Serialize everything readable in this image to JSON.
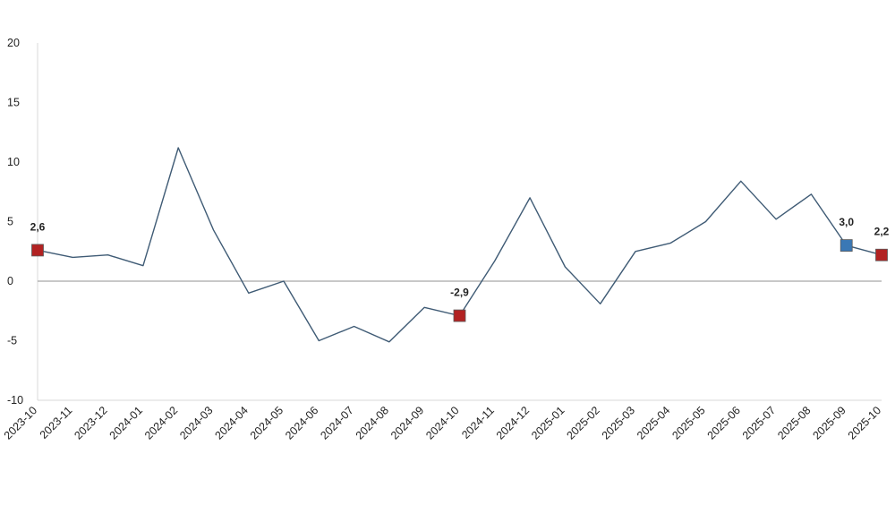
{
  "chart_data": {
    "type": "line",
    "title": "",
    "xlabel": "",
    "ylabel": "",
    "ylim": [
      -10,
      20
    ],
    "yticks": [
      -10,
      -5,
      0,
      5,
      10,
      15,
      20
    ],
    "grid": false,
    "zero_line": true,
    "categories": [
      "2023-10",
      "2023-11",
      "2023-12",
      "2024-01",
      "2024-02",
      "2024-03",
      "2024-04",
      "2024-05",
      "2024-06",
      "2024-07",
      "2024-08",
      "2024-09",
      "2024-10",
      "2024-11",
      "2024-12",
      "2025-01",
      "2025-02",
      "2025-03",
      "2025-04",
      "2025-05",
      "2025-06",
      "2025-07",
      "2025-08",
      "2025-09",
      "2025-10"
    ],
    "series": [
      {
        "values": [
          2.6,
          2.0,
          2.2,
          1.3,
          11.2,
          4.3,
          -1.0,
          0.0,
          -5.0,
          -3.8,
          -5.1,
          -2.2,
          -2.9,
          1.7,
          7.0,
          1.2,
          -1.9,
          2.5,
          3.2,
          5.0,
          8.4,
          5.2,
          7.3,
          3.0,
          2.2
        ],
        "color": "#3f5b75"
      }
    ],
    "highlights": [
      {
        "index": 0,
        "label": "2,6",
        "color": "#b22222"
      },
      {
        "index": 12,
        "label": "-2,9",
        "color": "#b22222"
      },
      {
        "index": 23,
        "label": "3,0",
        "color": "#3a78b5"
      },
      {
        "index": 24,
        "label": "2,2",
        "color": "#b22222"
      }
    ]
  }
}
